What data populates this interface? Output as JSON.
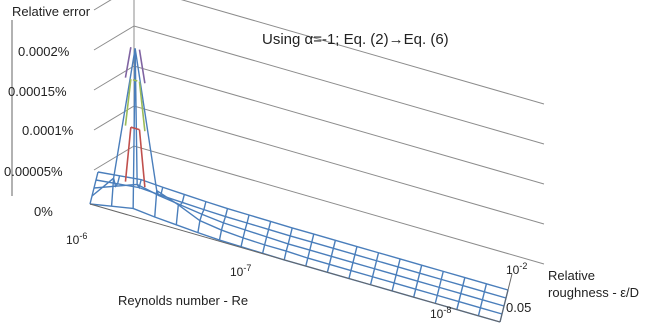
{
  "chart_data": {
    "type": "surface",
    "title": "Relative error",
    "annotation": "Using α=-1; Eq. (2)→Eq. (6)",
    "z_axis": {
      "ticks": [
        "0%",
        "0.00005%",
        "0.0001%",
        "0.00015%",
        "0.0002%"
      ],
      "range": [
        0,
        0.0002
      ]
    },
    "x_axis": {
      "label": "Reynolds number - Re",
      "ticks": [
        {
          "base": "10",
          "exp": "-6"
        },
        {
          "base": "10",
          "exp": "-7"
        },
        {
          "base": "10",
          "exp": "-8"
        }
      ]
    },
    "y_axis": {
      "label_line1": "Relative",
      "label_line2": "roughness - ε/D",
      "ticks": [
        {
          "base": "10",
          "exp": "-2"
        },
        {
          "base": "0.05",
          "exp": ""
        }
      ]
    },
    "colors": {
      "surface": "#4a7ebb",
      "band_red": "#c0504d",
      "band_green": "#9bbb59",
      "band_purple": "#8064a2",
      "gridline": "#8c8c8c",
      "axis": "#666666"
    },
    "peak_profile": [
      0,
      3e-05,
      0.0002,
      3e-05,
      2e-05,
      8e-06,
      4e-06,
      2e-06,
      1e-06,
      1e-06,
      0,
      0,
      0,
      0,
      0,
      0,
      0,
      0,
      0,
      0
    ],
    "second_row_profile": [
      0,
      1e-05,
      2e-05,
      1.4e-05,
      1e-05,
      6e-06,
      3e-06,
      2e-06,
      1e-06,
      0,
      0,
      0,
      0,
      0,
      0,
      0,
      0,
      0,
      0,
      0
    ]
  }
}
